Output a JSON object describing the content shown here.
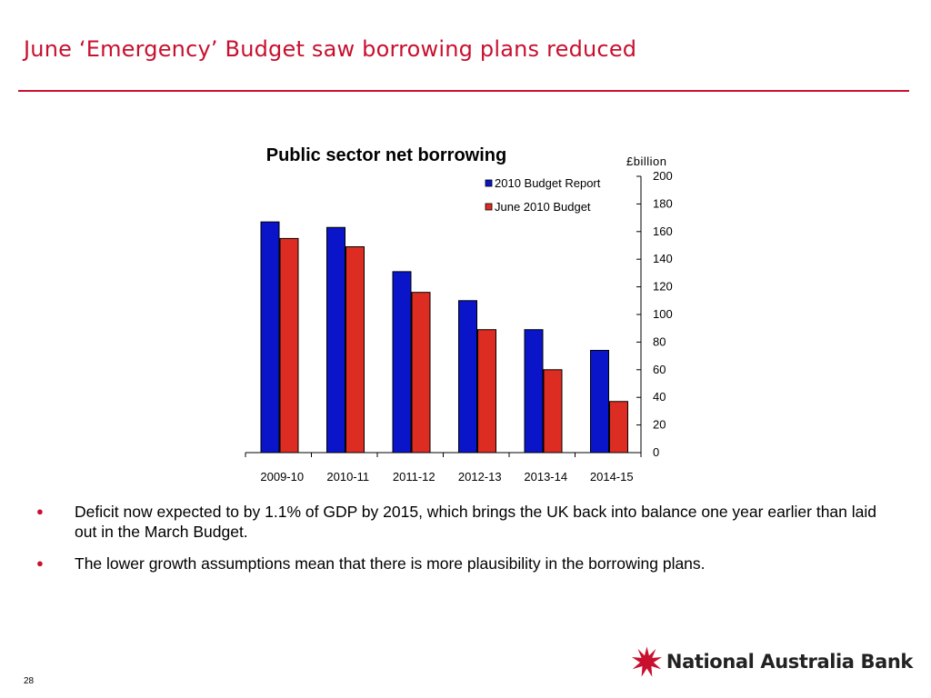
{
  "slide": {
    "title": "June ‘Emergency’ Budget saw borrowing plans reduced",
    "page_number": "28",
    "accent_color": "#c8102e"
  },
  "bullets": [
    {
      "text": "Deficit now expected to by 1.1% of GDP by 2015, which brings the UK back into balance one year earlier than laid out in the March Budget."
    },
    {
      "text": "The lower growth assumptions mean that there is more plausibility in the borrowing plans."
    }
  ],
  "bullet_symbol": "●",
  "logo": {
    "text": "National Australia Bank",
    "icon": "nab-star-icon"
  },
  "chart_data": {
    "type": "bar",
    "title": "Public sector net borrowing",
    "ylabel": "£billion",
    "categories": [
      "2009-10",
      "2010-11",
      "2011-12",
      "2012-13",
      "2013-14",
      "2014-15"
    ],
    "series": [
      {
        "name": "2010 Budget Report",
        "values": [
          167,
          163,
          131,
          110,
          89,
          74
        ],
        "color": "#0a14c8"
      },
      {
        "name": "June 2010 Budget",
        "values": [
          155,
          149,
          116,
          89,
          60,
          37
        ],
        "color": "#dd2d22"
      }
    ],
    "ylim": [
      0,
      200
    ],
    "yticks": [
      0,
      20,
      40,
      60,
      80,
      100,
      120,
      140,
      160,
      180,
      200
    ],
    "y_axis_side": "right",
    "grid": false,
    "legend_position": "top-right"
  }
}
